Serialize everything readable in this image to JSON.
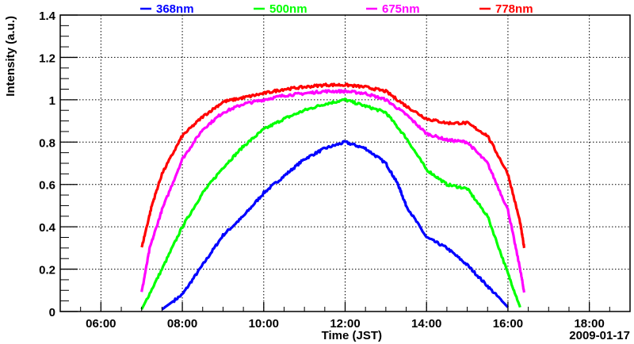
{
  "chart_data": {
    "type": "line",
    "title": "",
    "xlabel": "Time (JST)",
    "ylabel": "Intensity (a.u.)",
    "date_label": "2009-01-17",
    "xlim": [
      5,
      19
    ],
    "ylim": [
      0,
      1.4
    ],
    "grid": true,
    "legend_placement": "top",
    "x_ticks": [
      {
        "value": 6,
        "label": "06:00"
      },
      {
        "value": 8,
        "label": "08:00"
      },
      {
        "value": 10,
        "label": "10:00"
      },
      {
        "value": 12,
        "label": "12:00"
      },
      {
        "value": 14,
        "label": "14:00"
      },
      {
        "value": 16,
        "label": "16:00"
      },
      {
        "value": 18,
        "label": "18:00"
      }
    ],
    "y_ticks": [
      {
        "value": 0,
        "label": "0"
      },
      {
        "value": 0.2,
        "label": "0.2"
      },
      {
        "value": 0.4,
        "label": "0.4"
      },
      {
        "value": 0.6,
        "label": "0.6"
      },
      {
        "value": 0.8,
        "label": "0.8"
      },
      {
        "value": 1.0,
        "label": "1"
      },
      {
        "value": 1.2,
        "label": "1.2"
      },
      {
        "value": 1.4,
        "label": "1.4"
      }
    ],
    "series": [
      {
        "name": "368nm",
        "color": "#0000ff",
        "x": [
          7.5,
          8.0,
          8.5,
          9.0,
          9.5,
          10.0,
          10.5,
          11.0,
          11.5,
          12.0,
          12.5,
          13.0,
          13.3,
          13.5,
          14.0,
          14.5,
          15.0,
          15.5,
          16.0
        ],
        "y": [
          0.01,
          0.08,
          0.22,
          0.36,
          0.45,
          0.56,
          0.64,
          0.72,
          0.77,
          0.8,
          0.77,
          0.7,
          0.6,
          0.5,
          0.35,
          0.3,
          0.22,
          0.12,
          0.02
        ]
      },
      {
        "name": "500nm",
        "color": "#00ff00",
        "x": [
          7.0,
          7.5,
          8.0,
          8.5,
          9.0,
          9.5,
          10.0,
          10.5,
          11.0,
          11.5,
          12.0,
          12.5,
          13.0,
          13.5,
          14.0,
          14.5,
          15.0,
          15.5,
          16.0,
          16.3
        ],
        "y": [
          0.01,
          0.2,
          0.4,
          0.56,
          0.68,
          0.78,
          0.86,
          0.91,
          0.95,
          0.98,
          1.0,
          0.97,
          0.94,
          0.82,
          0.67,
          0.6,
          0.58,
          0.45,
          0.18,
          0.02
        ]
      },
      {
        "name": "675nm",
        "color": "#ff00ff",
        "x": [
          7.0,
          7.2,
          7.5,
          8.0,
          8.5,
          9.0,
          9.5,
          10.0,
          10.5,
          11.0,
          11.5,
          12.0,
          12.5,
          13.0,
          13.5,
          14.0,
          14.5,
          15.0,
          15.5,
          16.0,
          16.3,
          16.4
        ],
        "y": [
          0.09,
          0.3,
          0.48,
          0.72,
          0.86,
          0.94,
          0.98,
          1.0,
          1.02,
          1.03,
          1.04,
          1.04,
          1.03,
          1.0,
          0.93,
          0.84,
          0.81,
          0.8,
          0.7,
          0.48,
          0.2,
          0.09
        ]
      },
      {
        "name": "778nm",
        "color": "#ff0000",
        "x": [
          7.0,
          7.25,
          7.5,
          8.0,
          8.5,
          9.0,
          9.5,
          10.0,
          10.5,
          11.0,
          11.5,
          12.0,
          12.5,
          13.0,
          13.5,
          14.0,
          14.5,
          15.0,
          15.5,
          16.0,
          16.3,
          16.4
        ],
        "y": [
          0.3,
          0.5,
          0.65,
          0.83,
          0.92,
          0.99,
          1.01,
          1.03,
          1.05,
          1.06,
          1.07,
          1.07,
          1.06,
          1.04,
          0.97,
          0.91,
          0.89,
          0.89,
          0.83,
          0.65,
          0.42,
          0.3
        ]
      }
    ]
  }
}
